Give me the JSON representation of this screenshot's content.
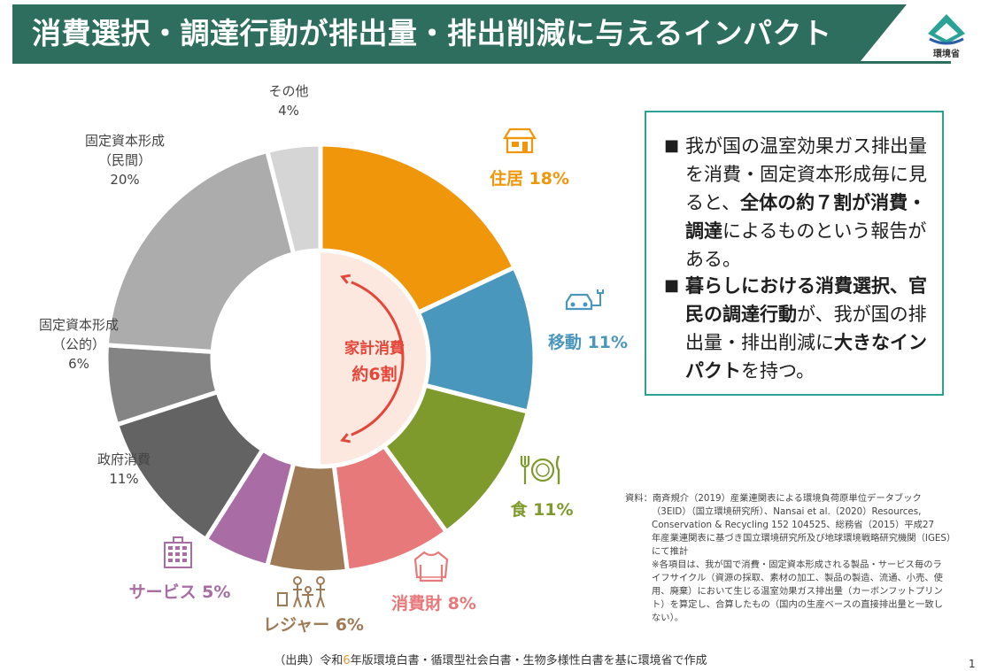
{
  "header": {
    "title": "消費選択・調達行動が排出量・排出削減に与えるインパクト",
    "logo_text": "環境省"
  },
  "chart_data": {
    "type": "pie",
    "subtype": "donut",
    "title": "",
    "center_label": [
      "家計消費",
      "約6割"
    ],
    "series": [
      {
        "label": "住居",
        "value": 18,
        "display": "18%",
        "color": "#F0960A",
        "icon": "house-icon",
        "group": "household"
      },
      {
        "label": "移動",
        "value": 11,
        "display": "11%",
        "color": "#4A97BD",
        "icon": "car-charging-icon",
        "group": "household"
      },
      {
        "label": "食",
        "value": 11,
        "display": "11%",
        "color": "#7E9A2D",
        "icon": "fork-plate-knife-icon",
        "group": "household"
      },
      {
        "label": "消費財",
        "value": 8,
        "display": "8%",
        "color": "#E8797A",
        "icon": "sweater-icon",
        "group": "household"
      },
      {
        "label": "レジャー",
        "value": 6,
        "display": "6%",
        "color": "#9E7B56",
        "icon": "family-luggage-icon",
        "group": "household"
      },
      {
        "label": "サービス",
        "value": 5,
        "display": "5%",
        "color": "#A96CA5",
        "icon": "building-icon",
        "group": "household"
      },
      {
        "label": "政府消費",
        "value": 11,
        "display": "11%",
        "color": "#636363",
        "icon": "",
        "group": "other"
      },
      {
        "label": "固定資本形成（公的）",
        "value": 6,
        "display": "6%",
        "color": "#848484",
        "icon": "",
        "group": "other"
      },
      {
        "label": "固定資本形成（民間）",
        "value": 20,
        "display": "20%",
        "color": "#ACACAC",
        "icon": "",
        "group": "other"
      },
      {
        "label": "その他",
        "value": 4,
        "display": "4%",
        "color": "#D5D5D5",
        "icon": "",
        "group": "other"
      }
    ]
  },
  "info_box": {
    "bullets": [
      [
        {
          "t": "我が国の温室効果ガス排出量を消費・固定資本形成毎に見ると、",
          "b": false
        },
        {
          "t": "全体の約７割が消費・調達",
          "b": true
        },
        {
          "t": "によるものという報告がある。",
          "b": false
        }
      ],
      [
        {
          "t": "暮らしにおける消費選択、官民の調達行動",
          "b": true
        },
        {
          "t": "が、我が国の排出量・排出削減に",
          "b": false
        },
        {
          "t": "大きなインパクト",
          "b": true
        },
        {
          "t": "を持つ。",
          "b": false
        }
      ]
    ]
  },
  "source_note": {
    "lines": [
      "資料：南斉規介（2019）産業連関表による環境負荷原単位データブック",
      "（3EID）（国立環境研究所）、Nansai et al.（2020）Resources,",
      "Conservation & Recycling 152 104525、総務省（2015）平成27",
      "年産業連関表に基づき国立環境研究所及び地球環境戦略研究機関（IGES）",
      "にて推計",
      "※各項目は、我が国で消費・固定資本形成される製品・サービス毎のラ",
      "イフサイクル（資源の採取、素材の加工、製品の製造、流通、小売、使",
      "用、廃棄）において生じる温室効果ガス排出量（カーボンフットプリン",
      "ト）を算定し、合算したもの（国内の生産ベースの直接排出量と一致し",
      "ない）。"
    ]
  },
  "footer": {
    "prefix": "（出典）令和",
    "num": "6",
    "suffix": "年版環境白書・循環型社会白書・生物多様性白書を基に環境省で作成"
  },
  "page_mark": "1"
}
